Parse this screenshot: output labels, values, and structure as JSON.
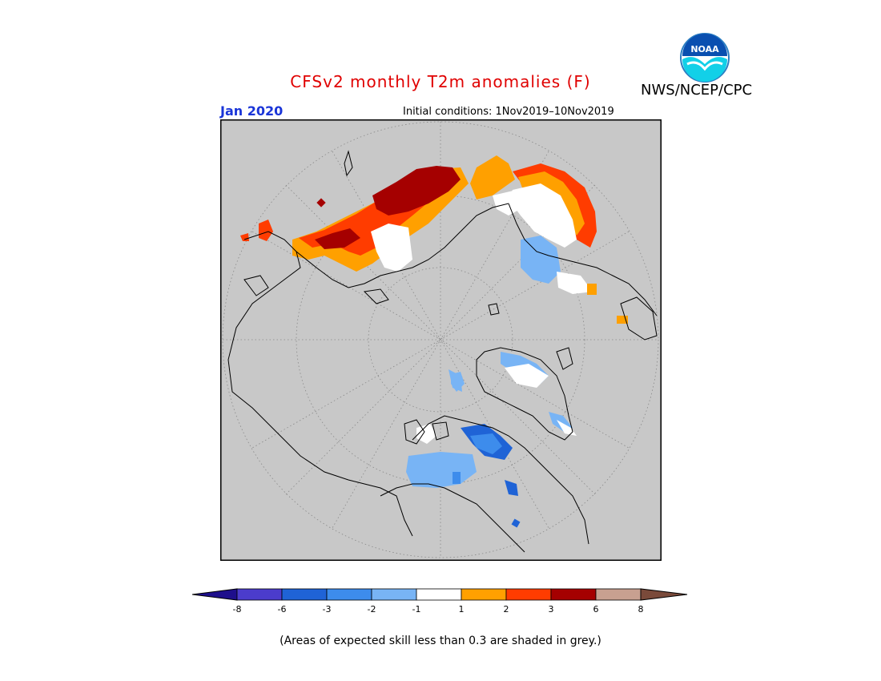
{
  "header": {
    "title": "CFSv2 monthly T2m anomalies (F)",
    "agency": "NWS/NCEP/CPC",
    "valid_month": "Jan 2020",
    "initial_conditions": "Initial conditions: 1Nov2019–10Nov2019",
    "logo_text": "NOAA"
  },
  "colorbar": {
    "colors": [
      "#1e0f8c",
      "#4b3ccc",
      "#1f63d6",
      "#3d8cec",
      "#78b4f5",
      "#ffffff",
      "#ffa000",
      "#ff3c00",
      "#a50000",
      "#c8a090",
      "#7a4a3a"
    ],
    "labels": [
      "-8",
      "-6",
      "-3",
      "-2",
      "-1",
      "1",
      "2",
      "3",
      "6",
      "8"
    ]
  },
  "footer": {
    "note": "(Areas of expected skill less than 0.3 are shaded in grey.)"
  },
  "map": {
    "projection": "north polar stereographic",
    "grey_color": "#c8c8c8"
  }
}
